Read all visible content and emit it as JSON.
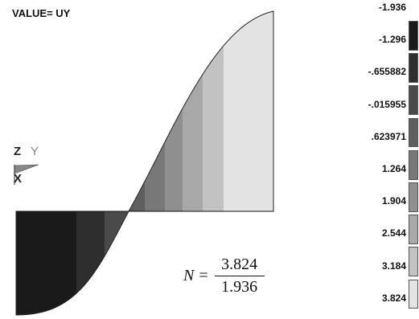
{
  "title": "VALUE= UY",
  "axis_triad": {
    "z": "Z",
    "y": "Y",
    "x": "X"
  },
  "legend": {
    "values": [
      "-1.936",
      "-1.296",
      "-.655882",
      "-.015955",
      ".623971",
      "1.264",
      "1.904",
      "2.544",
      "3.184",
      "3.824"
    ],
    "colors": [
      "#ffffff",
      "#1a1a1a",
      "#2e2e2e",
      "#4a4a4a",
      "#5f5f5f",
      "#787878",
      "#8f8f8f",
      "#a8a8a8",
      "#c2c2c2",
      "#e3e3e3"
    ]
  },
  "formula": {
    "lhs": "N",
    "equals": "=",
    "numerator": "3.824",
    "denominator": "1.936"
  },
  "bands": [
    {
      "x1": 20,
      "x2": 95,
      "color": "#1a1a1a"
    },
    {
      "x1": 95,
      "x2": 130,
      "color": "#2e2e2e"
    },
    {
      "x1": 130,
      "x2": 158,
      "color": "#4a4a4a"
    },
    {
      "x1": 158,
      "x2": 180,
      "color": "#5f5f5f"
    },
    {
      "x1": 180,
      "x2": 205,
      "color": "#787878"
    },
    {
      "x1": 205,
      "x2": 227,
      "color": "#8f8f8f"
    },
    {
      "x1": 227,
      "x2": 252,
      "color": "#a8a8a8"
    },
    {
      "x1": 252,
      "x2": 278,
      "color": "#c2c2c2"
    },
    {
      "x1": 278,
      "x2": 340,
      "color": "#e3e3e3"
    }
  ]
}
